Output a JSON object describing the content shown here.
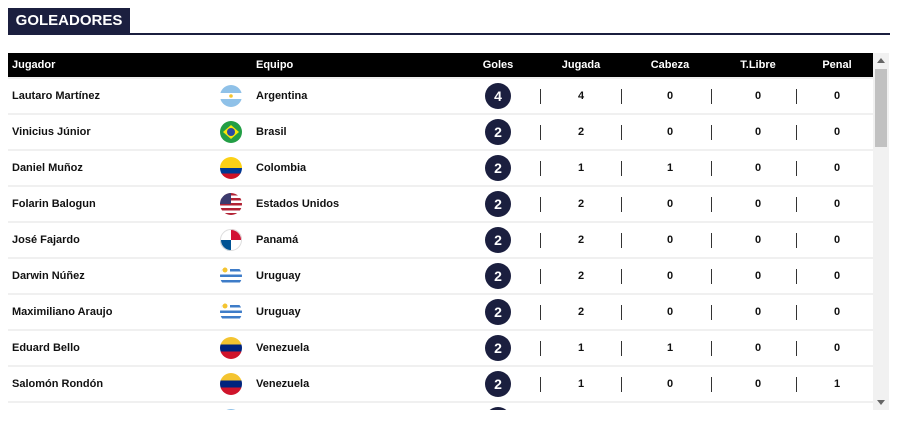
{
  "header": {
    "title": "GOLEADORES"
  },
  "table": {
    "columns": [
      "Jugador",
      "Equipo",
      "Goles",
      "Jugada",
      "Cabeza",
      "T.Libre",
      "Penal"
    ],
    "rows": [
      [
        "Lautaro Martínez",
        "Argentina",
        "4",
        "4",
        "0",
        "0",
        "0"
      ],
      [
        "Vinicius Júnior",
        "Brasil",
        "2",
        "2",
        "0",
        "0",
        "0"
      ],
      [
        "Daniel Muñoz",
        "Colombia",
        "2",
        "1",
        "1",
        "0",
        "0"
      ],
      [
        "Folarin Balogun",
        "Estados Unidos",
        "2",
        "2",
        "0",
        "0",
        "0"
      ],
      [
        "José Fajardo",
        "Panamá",
        "2",
        "2",
        "0",
        "0",
        "0"
      ],
      [
        "Darwin Núñez",
        "Uruguay",
        "2",
        "2",
        "0",
        "0",
        "0"
      ],
      [
        "Maximiliano Araujo",
        "Uruguay",
        "2",
        "2",
        "0",
        "0",
        "0"
      ],
      [
        "Eduard Bello",
        "Venezuela",
        "2",
        "1",
        "1",
        "0",
        "0"
      ],
      [
        "Salomón Rondón",
        "Venezuela",
        "2",
        "1",
        "0",
        "0",
        "1"
      ]
    ]
  }
}
